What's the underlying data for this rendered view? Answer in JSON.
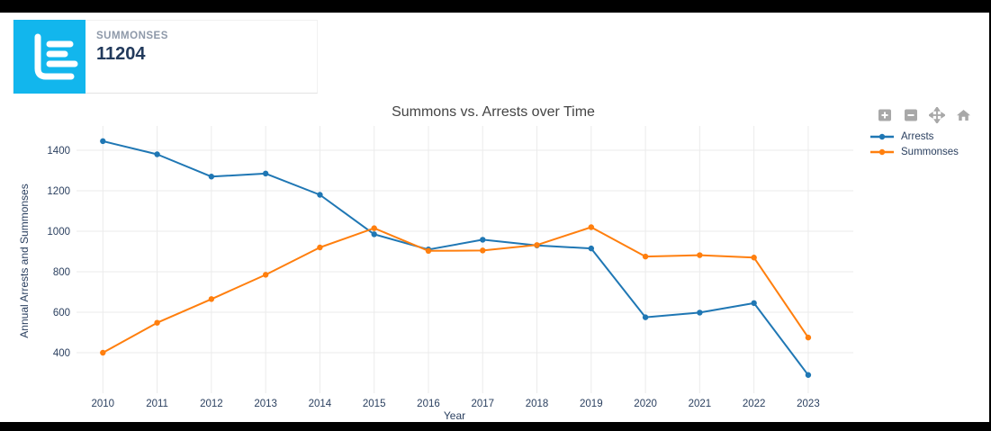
{
  "card": {
    "label": "SUMMONSES",
    "value": "11204",
    "accent_color": "#12b6ed",
    "icon": "horizontal-bar-chart-icon"
  },
  "modebar": {
    "buttons": [
      {
        "name": "zoom-in",
        "icon": "plus-square-icon"
      },
      {
        "name": "zoom-out",
        "icon": "minus-square-icon"
      },
      {
        "name": "pan",
        "icon": "move-arrows-icon"
      },
      {
        "name": "home",
        "icon": "home-icon"
      }
    ],
    "icon_color": "#a8a8a8"
  },
  "chart_data": {
    "type": "line",
    "title": "Summons vs. Arrests over Time",
    "xlabel": "Year",
    "ylabel": "Annual Arrests and Summonses",
    "categories": [
      "2010",
      "2011",
      "2012",
      "2013",
      "2014",
      "2015",
      "2016",
      "2017",
      "2018",
      "2019",
      "2020",
      "2021",
      "2022",
      "2023"
    ],
    "series": [
      {
        "name": "Arrests",
        "color": "#1f77b4",
        "values": [
          1445,
          1380,
          1270,
          1285,
          1180,
          985,
          910,
          958,
          930,
          915,
          575,
          598,
          645,
          290
        ]
      },
      {
        "name": "Summonses",
        "color": "#ff7f0e",
        "values": [
          400,
          548,
          665,
          785,
          920,
          1015,
          903,
          905,
          932,
          1020,
          875,
          882,
          870,
          475
        ]
      }
    ],
    "yticks": [
      400,
      600,
      800,
      1000,
      1200,
      1400
    ],
    "ylim": [
      200,
      1520
    ],
    "grid": true,
    "legend_position": "right",
    "title_color": "#444444",
    "tick_color": "#2a3f5f",
    "grid_color": "#ebebeb"
  }
}
